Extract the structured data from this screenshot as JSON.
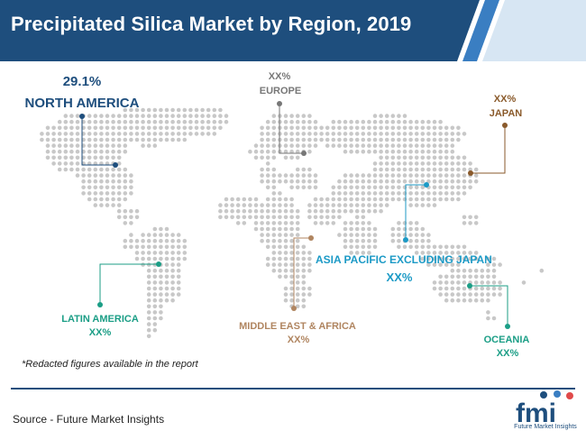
{
  "title": "Precipitated Silica Market by Region, 2019",
  "regions": {
    "north_america": {
      "name": "NORTH AMERICA",
      "value": "29.1%",
      "color": "#1e4e7d"
    },
    "europe": {
      "name": "EUROPE",
      "value": "XX%",
      "color": "#777777"
    },
    "japan": {
      "name": "JAPAN",
      "value": "XX%",
      "color": "#8a5a2b"
    },
    "apej": {
      "name": "ASIA PACIFIC EXCLUDING JAPAN",
      "value": "XX%",
      "color": "#1c9ac6"
    },
    "latin_america": {
      "name": "LATIN AMERICA",
      "value": "XX%",
      "color": "#1b9e86"
    },
    "mea": {
      "name": "MIDDLE EAST & AFRICA",
      "value": "XX%",
      "color": "#b08560"
    },
    "oceania": {
      "name": "OCEANIA",
      "value": "XX%",
      "color": "#1b9e86"
    }
  },
  "note": "*Redacted figures available in the report",
  "source": "Source - Future Market Insights",
  "logo": {
    "text": "fmi",
    "caption": "Future Market Insights"
  },
  "colors": {
    "header": "#1e4e7d",
    "accent": "#3a7ec2",
    "map_dots": "#c8c8c8"
  }
}
